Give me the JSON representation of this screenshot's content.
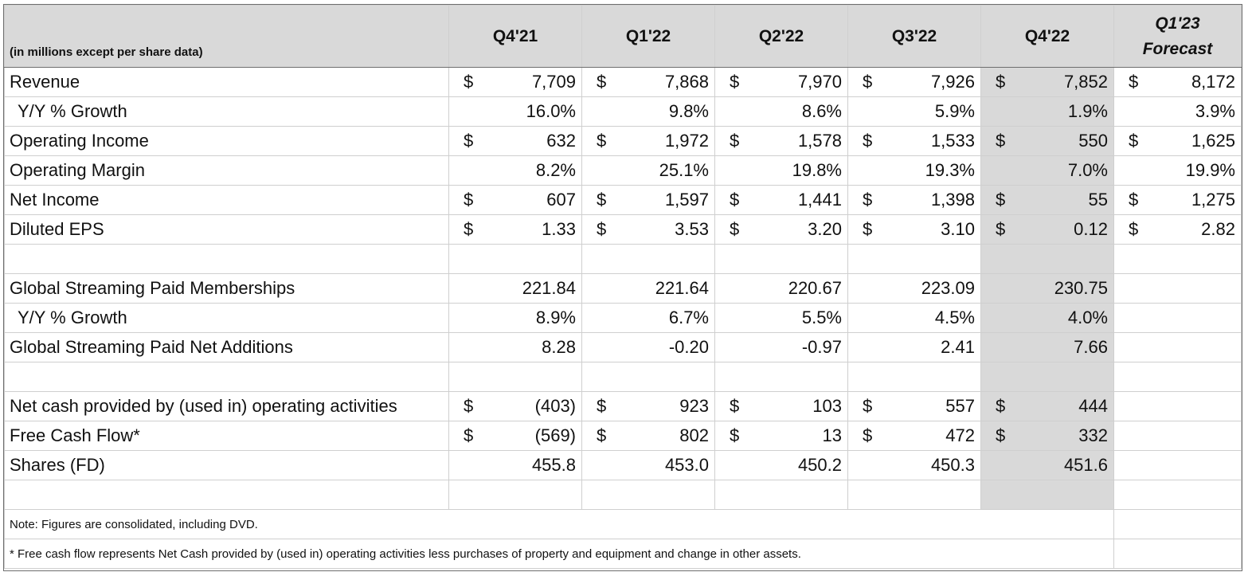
{
  "header": {
    "units_note": "(in millions except per share data)",
    "columns": [
      "Q4'21",
      "Q1'22",
      "Q2'22",
      "Q3'22",
      "Q4'22"
    ],
    "forecast_line1": "Q1'23",
    "forecast_line2": "Forecast"
  },
  "rows": [
    {
      "label": "Revenue",
      "indent": false,
      "currency": true,
      "cells": [
        "7,709",
        "7,868",
        "7,970",
        "7,926",
        "7,852",
        "8,172"
      ]
    },
    {
      "label": "Y/Y % Growth",
      "indent": true,
      "currency": false,
      "cells": [
        "16.0%",
        "9.8%",
        "8.6%",
        "5.9%",
        "1.9%",
        "3.9%"
      ]
    },
    {
      "label": "Operating Income",
      "indent": false,
      "currency": true,
      "cells": [
        "632",
        "1,972",
        "1,578",
        "1,533",
        "550",
        "1,625"
      ]
    },
    {
      "label": "Operating Margin",
      "indent": false,
      "currency": false,
      "cells": [
        "8.2%",
        "25.1%",
        "19.8%",
        "19.3%",
        "7.0%",
        "19.9%"
      ]
    },
    {
      "label": "Net Income",
      "indent": false,
      "currency": true,
      "cells": [
        "607",
        "1,597",
        "1,441",
        "1,398",
        "55",
        "1,275"
      ]
    },
    {
      "label": "Diluted EPS",
      "indent": false,
      "currency": true,
      "cells": [
        "1.33",
        "3.53",
        "3.20",
        "3.10",
        "0.12",
        "2.82"
      ]
    },
    {
      "spacer": true
    },
    {
      "label": "Global Streaming Paid Memberships",
      "indent": false,
      "currency": false,
      "cells": [
        "221.84",
        "221.64",
        "220.67",
        "223.09",
        "230.75",
        ""
      ]
    },
    {
      "label": "Y/Y % Growth",
      "indent": true,
      "currency": false,
      "cells": [
        "8.9%",
        "6.7%",
        "5.5%",
        "4.5%",
        "4.0%",
        ""
      ]
    },
    {
      "label": "Global Streaming Paid Net Additions",
      "indent": false,
      "currency": false,
      "cells": [
        "8.28",
        "-0.20",
        "-0.97",
        "2.41",
        "7.66",
        ""
      ]
    },
    {
      "spacer": true
    },
    {
      "label": "Net cash provided by (used in) operating activities",
      "indent": false,
      "currency": true,
      "cells": [
        "(403)",
        "923",
        "103",
        "557",
        "444",
        ""
      ]
    },
    {
      "label": "Free Cash Flow*",
      "indent": false,
      "currency": true,
      "cells": [
        "(569)",
        "802",
        "13",
        "472",
        "332",
        ""
      ]
    },
    {
      "label": "Shares (FD)",
      "indent": false,
      "currency": false,
      "cells": [
        "455.8",
        "453.0",
        "450.2",
        "450.3",
        "451.6",
        ""
      ]
    },
    {
      "spacer": true
    }
  ],
  "currency_symbol": "$",
  "notes": {
    "consolidated": "Note: Figures are consolidated, including DVD.",
    "fcf_definition": "* Free cash flow represents Net Cash provided by (used in) operating activities less purchases of property and equipment and change in other assets."
  },
  "colors": {
    "highlight": "#d9d9d9",
    "grid": "#cfcfcf",
    "border": "#6e6e6e"
  }
}
